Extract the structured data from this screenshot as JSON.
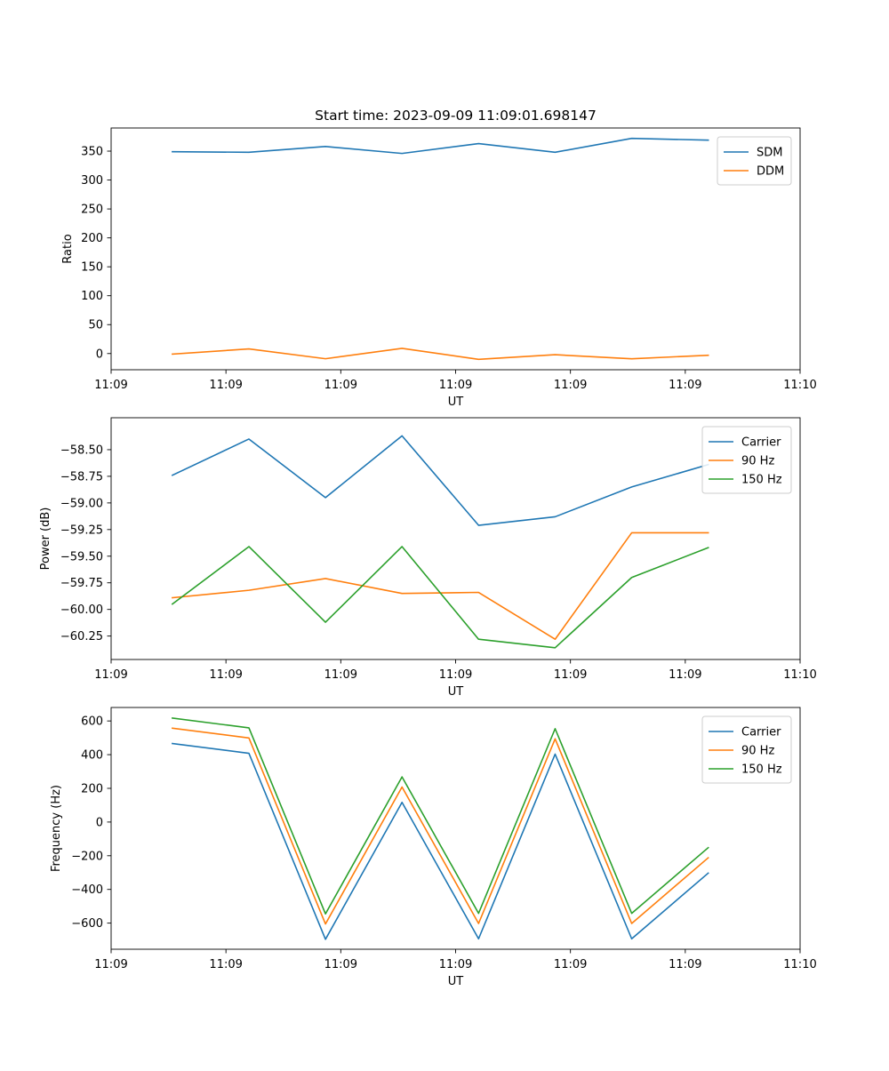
{
  "figure": {
    "title": "Start time: 2023-09-09 11:09:01.698147"
  },
  "chart_data": [
    {
      "type": "line",
      "title": "Start time: 2023-09-09 11:09:01.698147",
      "xlabel": "UT",
      "ylabel": "Ratio",
      "x": [
        1,
        2,
        3,
        4,
        5,
        6,
        7,
        8
      ],
      "xlim": [
        0.2,
        9.2
      ],
      "x_ticks": [
        0.2,
        1.7,
        3.2,
        4.7,
        6.2,
        7.7,
        9.2
      ],
      "x_tick_labels": [
        "11:09",
        "11:09",
        "11:09",
        "11:09",
        "11:09",
        "11:09",
        "11:10"
      ],
      "ylim": [
        -28,
        390
      ],
      "y_ticks": [
        0,
        50,
        100,
        150,
        200,
        250,
        300,
        350
      ],
      "y_tick_labels": [
        "0",
        "50",
        "100",
        "150",
        "200",
        "250",
        "300",
        "350"
      ],
      "legend_position": "top-right",
      "grid": false,
      "series": [
        {
          "name": "SDM",
          "color": "#1f77b4",
          "values": [
            349,
            348,
            358,
            346,
            363,
            348,
            372,
            369
          ]
        },
        {
          "name": "DDM",
          "color": "#ff7f0e",
          "values": [
            -1,
            8,
            -9,
            9,
            -10,
            -2,
            -9,
            -3
          ]
        }
      ]
    },
    {
      "type": "line",
      "title": "",
      "xlabel": "UT",
      "ylabel": "Power (dB)",
      "x": [
        1,
        2,
        3,
        4,
        5,
        6,
        7,
        8
      ],
      "xlim": [
        0.2,
        9.2
      ],
      "x_ticks": [
        0.2,
        1.7,
        3.2,
        4.7,
        6.2,
        7.7,
        9.2
      ],
      "x_tick_labels": [
        "11:09",
        "11:09",
        "11:09",
        "11:09",
        "11:09",
        "11:09",
        "11:10"
      ],
      "ylim": [
        -60.47,
        -58.2
      ],
      "y_ticks": [
        -60.25,
        -60.0,
        -59.75,
        -59.5,
        -59.25,
        -59.0,
        -58.75,
        -58.5
      ],
      "y_tick_labels": [
        "−60.25",
        "−60.00",
        "−59.75",
        "−59.50",
        "−59.25",
        "−59.00",
        "−58.75",
        "−58.50"
      ],
      "legend_position": "top-right",
      "grid": false,
      "series": [
        {
          "name": "Carrier",
          "color": "#1f77b4",
          "values": [
            -58.74,
            -58.4,
            -58.95,
            -58.37,
            -59.21,
            -59.13,
            -58.85,
            -58.64
          ]
        },
        {
          "name": "90 Hz",
          "color": "#ff7f0e",
          "values": [
            -59.89,
            -59.82,
            -59.71,
            -59.85,
            -59.84,
            -60.28,
            -59.28,
            -59.28
          ]
        },
        {
          "name": "150 Hz",
          "color": "#2ca02c",
          "values": [
            -59.95,
            -59.41,
            -60.12,
            -59.41,
            -60.28,
            -60.36,
            -59.7,
            -59.42
          ]
        }
      ]
    },
    {
      "type": "line",
      "title": "",
      "xlabel": "UT",
      "ylabel": "Frequency (Hz)",
      "x": [
        1,
        2,
        3,
        4,
        5,
        6,
        7,
        8
      ],
      "xlim": [
        0.2,
        9.2
      ],
      "x_ticks": [
        0.2,
        1.7,
        3.2,
        4.7,
        6.2,
        7.7,
        9.2
      ],
      "x_tick_labels": [
        "11:09",
        "11:09",
        "11:09",
        "11:09",
        "11:09",
        "11:09",
        "11:10"
      ],
      "ylim": [
        -755,
        680
      ],
      "y_ticks": [
        -600,
        -400,
        -200,
        0,
        200,
        400,
        600
      ],
      "y_tick_labels": [
        "−600",
        "−400",
        "−200",
        "0",
        "200",
        "400",
        "600"
      ],
      "legend_position": "top-right",
      "grid": false,
      "series": [
        {
          "name": "Carrier",
          "color": "#1f77b4",
          "values": [
            466,
            408,
            -696,
            117,
            -693,
            403,
            -693,
            -303
          ]
        },
        {
          "name": "90 Hz",
          "color": "#ff7f0e",
          "values": [
            557,
            499,
            -605,
            208,
            -602,
            494,
            -602,
            -212
          ]
        },
        {
          "name": "150 Hz",
          "color": "#2ca02c",
          "values": [
            617,
            559,
            -545,
            268,
            -542,
            554,
            -542,
            -152
          ]
        }
      ]
    }
  ]
}
